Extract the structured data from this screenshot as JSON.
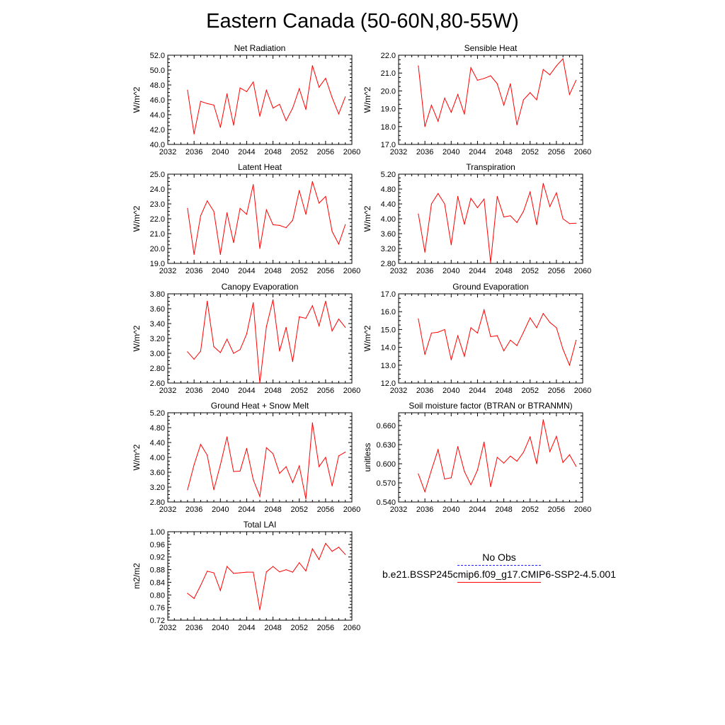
{
  "figure": {
    "title": "Eastern Canada (50-60N,80-55W)"
  },
  "legend": {
    "entries": [
      {
        "label": "No Obs",
        "color": "#1f1fff",
        "style": "dashed"
      },
      {
        "label": "b.e21.BSSP245cmip6.f09_g17.CMIP6-SSP2-4.5.001",
        "color": "#ff0000",
        "style": "solid"
      }
    ]
  },
  "chart_data": [
    {
      "type": "line",
      "title": "Net Radiation",
      "xlabel": "",
      "ylabel": "W/m^2",
      "xlim": [
        2032,
        2060
      ],
      "ylim": [
        40.0,
        52.0
      ],
      "xticks": [
        2032,
        2036,
        2040,
        2044,
        2048,
        2052,
        2056,
        2060
      ],
      "yticks": [
        "40.0",
        "42.0",
        "44.0",
        "46.0",
        "48.0",
        "50.0",
        "52.0"
      ],
      "grid": false,
      "x": [
        2035,
        2036,
        2037,
        2038,
        2039,
        2040,
        2041,
        2042,
        2043,
        2044,
        2045,
        2046,
        2047,
        2048,
        2049,
        2050,
        2051,
        2052,
        2053,
        2054,
        2055,
        2056,
        2057,
        2058,
        2059
      ],
      "series": [
        {
          "name": "b.e21.BSSP245cmip6.f09_g17.CMIP6-SSP2-4.5.001",
          "color": "#ff0000",
          "values": [
            47.3,
            41.4,
            45.8,
            45.5,
            45.3,
            42.3,
            46.8,
            42.6,
            47.6,
            47.1,
            48.4,
            43.8,
            47.3,
            44.9,
            45.4,
            43.2,
            44.9,
            47.5,
            44.7,
            50.6,
            47.7,
            48.9,
            46.3,
            44.1,
            46.4
          ]
        }
      ]
    },
    {
      "type": "line",
      "title": "Sensible Heat",
      "xlabel": "",
      "ylabel": "W/m^2",
      "xlim": [
        2032,
        2060
      ],
      "ylim": [
        17.0,
        22.0
      ],
      "xticks": [
        2032,
        2036,
        2040,
        2044,
        2048,
        2052,
        2056,
        2060
      ],
      "yticks": [
        "17.0",
        "18.0",
        "19.0",
        "20.0",
        "21.0",
        "22.0"
      ],
      "grid": false,
      "x": [
        2035,
        2036,
        2037,
        2038,
        2039,
        2040,
        2041,
        2042,
        2043,
        2044,
        2045,
        2046,
        2047,
        2048,
        2049,
        2050,
        2051,
        2052,
        2053,
        2054,
        2055,
        2056,
        2057,
        2058,
        2059
      ],
      "series": [
        {
          "name": "b.e21.BSSP245cmip6.f09_g17.CMIP6-SSP2-4.5.001",
          "color": "#ff0000",
          "values": [
            21.4,
            18.0,
            19.2,
            18.3,
            19.6,
            18.8,
            19.8,
            18.7,
            21.3,
            20.6,
            20.7,
            20.85,
            20.4,
            19.2,
            20.4,
            18.1,
            19.5,
            19.9,
            19.5,
            21.2,
            20.9,
            21.4,
            21.8,
            19.8,
            20.6
          ]
        }
      ]
    },
    {
      "type": "line",
      "title": "Latent Heat",
      "xlabel": "",
      "ylabel": "W/m^2",
      "xlim": [
        2032,
        2060
      ],
      "ylim": [
        19.0,
        25.0
      ],
      "xticks": [
        2032,
        2036,
        2040,
        2044,
        2048,
        2052,
        2056,
        2060
      ],
      "yticks": [
        "19.0",
        "20.0",
        "21.0",
        "22.0",
        "23.0",
        "24.0",
        "25.0"
      ],
      "grid": false,
      "x": [
        2035,
        2036,
        2037,
        2038,
        2039,
        2040,
        2041,
        2042,
        2043,
        2044,
        2045,
        2046,
        2047,
        2048,
        2049,
        2050,
        2051,
        2052,
        2053,
        2054,
        2055,
        2056,
        2057,
        2058,
        2059
      ],
      "series": [
        {
          "name": "b.e21.BSSP245cmip6.f09_g17.CMIP6-SSP2-4.5.001",
          "color": "#ff0000",
          "values": [
            22.7,
            19.6,
            22.2,
            23.2,
            22.5,
            19.6,
            22.4,
            20.4,
            22.7,
            22.3,
            24.3,
            20.0,
            22.6,
            21.6,
            21.55,
            21.4,
            21.9,
            23.9,
            22.3,
            24.5,
            23.05,
            23.5,
            21.15,
            20.3,
            21.6
          ]
        }
      ]
    },
    {
      "type": "line",
      "title": "Transpiration",
      "xlabel": "",
      "ylabel": "W/m^2",
      "xlim": [
        2032,
        2060
      ],
      "ylim": [
        2.8,
        5.2
      ],
      "xticks": [
        2032,
        2036,
        2040,
        2044,
        2048,
        2052,
        2056,
        2060
      ],
      "yticks": [
        "2.80",
        "3.20",
        "3.60",
        "4.00",
        "4.40",
        "4.80",
        "5.20"
      ],
      "grid": false,
      "x": [
        2035,
        2036,
        2037,
        2038,
        2039,
        2040,
        2041,
        2042,
        2043,
        2044,
        2045,
        2046,
        2047,
        2048,
        2049,
        2050,
        2051,
        2052,
        2053,
        2054,
        2055,
        2056,
        2057,
        2058,
        2059
      ],
      "series": [
        {
          "name": "b.e21.BSSP245cmip6.f09_g17.CMIP6-SSP2-4.5.001",
          "color": "#ff0000",
          "values": [
            4.13,
            3.1,
            4.4,
            4.68,
            4.4,
            3.3,
            4.6,
            3.85,
            4.55,
            4.3,
            4.53,
            2.82,
            4.6,
            4.05,
            4.08,
            3.9,
            4.2,
            4.72,
            3.84,
            4.95,
            4.33,
            4.7,
            4.0,
            3.87,
            3.88
          ]
        }
      ]
    },
    {
      "type": "line",
      "title": "Canopy Evaporation",
      "xlabel": "",
      "ylabel": "W/m^2",
      "xlim": [
        2032,
        2060
      ],
      "ylim": [
        2.6,
        3.8
      ],
      "xticks": [
        2032,
        2036,
        2040,
        2044,
        2048,
        2052,
        2056,
        2060
      ],
      "yticks": [
        "2.60",
        "2.80",
        "3.00",
        "3.20",
        "3.40",
        "3.60",
        "3.80"
      ],
      "grid": false,
      "x": [
        2035,
        2036,
        2037,
        2038,
        2039,
        2040,
        2041,
        2042,
        2043,
        2044,
        2045,
        2046,
        2047,
        2048,
        2049,
        2050,
        2051,
        2052,
        2053,
        2054,
        2055,
        2056,
        2057,
        2058,
        2059
      ],
      "series": [
        {
          "name": "b.e21.BSSP245cmip6.f09_g17.CMIP6-SSP2-4.5.001",
          "color": "#ff0000",
          "values": [
            3.02,
            2.92,
            3.03,
            3.7,
            3.09,
            3.01,
            3.19,
            3.0,
            3.05,
            3.26,
            3.68,
            2.6,
            3.36,
            3.72,
            3.03,
            3.35,
            2.89,
            3.49,
            3.47,
            3.64,
            3.37,
            3.7,
            3.3,
            3.46,
            3.35
          ]
        }
      ]
    },
    {
      "type": "line",
      "title": "Ground Evaporation",
      "xlabel": "",
      "ylabel": "W/m^2",
      "xlim": [
        2032,
        2060
      ],
      "ylim": [
        12.0,
        17.0
      ],
      "xticks": [
        2032,
        2036,
        2040,
        2044,
        2048,
        2052,
        2056,
        2060
      ],
      "yticks": [
        "12.0",
        "13.0",
        "14.0",
        "15.0",
        "16.0",
        "17.0"
      ],
      "grid": false,
      "x": [
        2035,
        2036,
        2037,
        2038,
        2039,
        2040,
        2041,
        2042,
        2043,
        2044,
        2045,
        2046,
        2047,
        2048,
        2049,
        2050,
        2051,
        2052,
        2053,
        2054,
        2055,
        2056,
        2057,
        2058,
        2059
      ],
      "series": [
        {
          "name": "b.e21.BSSP245cmip6.f09_g17.CMIP6-SSP2-4.5.001",
          "color": "#ff0000",
          "values": [
            15.6,
            13.6,
            14.8,
            14.85,
            15.0,
            13.3,
            14.65,
            13.5,
            15.1,
            14.8,
            16.1,
            14.6,
            14.65,
            13.8,
            14.4,
            14.1,
            14.85,
            15.65,
            15.1,
            15.9,
            15.4,
            15.1,
            13.9,
            13.0,
            14.4
          ]
        }
      ]
    },
    {
      "type": "line",
      "title": "Ground Heat + Snow Melt",
      "xlabel": "",
      "ylabel": "W/m^2",
      "xlim": [
        2032,
        2060
      ],
      "ylim": [
        2.8,
        5.2
      ],
      "xticks": [
        2032,
        2036,
        2040,
        2044,
        2048,
        2052,
        2056,
        2060
      ],
      "yticks": [
        "2.80",
        "3.20",
        "3.60",
        "4.00",
        "4.40",
        "4.80",
        "5.20"
      ],
      "grid": false,
      "x": [
        2035,
        2036,
        2037,
        2038,
        2039,
        2040,
        2041,
        2042,
        2043,
        2044,
        2045,
        2046,
        2047,
        2048,
        2049,
        2050,
        2051,
        2052,
        2053,
        2054,
        2055,
        2056,
        2057,
        2058,
        2059
      ],
      "series": [
        {
          "name": "b.e21.BSSP245cmip6.f09_g17.CMIP6-SSP2-4.5.001",
          "color": "#ff0000",
          "values": [
            3.13,
            3.8,
            4.35,
            4.06,
            3.13,
            3.8,
            4.55,
            3.62,
            3.63,
            4.24,
            3.4,
            2.95,
            4.26,
            4.1,
            3.57,
            3.75,
            3.32,
            3.77,
            2.88,
            4.93,
            3.75,
            4.0,
            3.23,
            4.04,
            4.14
          ]
        }
      ]
    },
    {
      "type": "line",
      "title": "Soil moisture factor (BTRAN or BTRANMN)",
      "xlabel": "",
      "ylabel": "unitless",
      "xlim": [
        2032,
        2060
      ],
      "ylim": [
        0.54,
        0.68
      ],
      "xticks": [
        2032,
        2036,
        2040,
        2044,
        2048,
        2052,
        2056,
        2060
      ],
      "yticks": [
        "0.540",
        "0.570",
        "0.600",
        "0.630",
        "0.660"
      ],
      "grid": false,
      "x": [
        2035,
        2036,
        2037,
        2038,
        2039,
        2040,
        2041,
        2042,
        2043,
        2044,
        2045,
        2046,
        2047,
        2048,
        2049,
        2050,
        2051,
        2052,
        2053,
        2054,
        2055,
        2056,
        2057,
        2058,
        2059
      ],
      "series": [
        {
          "name": "b.e21.BSSP245cmip6.f09_g17.CMIP6-SSP2-4.5.001",
          "color": "#ff0000",
          "values": [
            0.584,
            0.556,
            0.59,
            0.622,
            0.576,
            0.578,
            0.627,
            0.588,
            0.567,
            0.59,
            0.634,
            0.564,
            0.61,
            0.601,
            0.612,
            0.604,
            0.618,
            0.642,
            0.6,
            0.669,
            0.619,
            0.643,
            0.602,
            0.614,
            0.596
          ]
        }
      ]
    },
    {
      "type": "line",
      "title": "Total LAI",
      "xlabel": "",
      "ylabel": "m2/m2",
      "xlim": [
        2032,
        2060
      ],
      "ylim": [
        0.72,
        1.0
      ],
      "xticks": [
        2032,
        2036,
        2040,
        2044,
        2048,
        2052,
        2056,
        2060
      ],
      "yticks": [
        "0.72",
        "0.76",
        "0.80",
        "0.84",
        "0.88",
        "0.92",
        "0.96",
        "1.00"
      ],
      "grid": false,
      "x": [
        2035,
        2036,
        2037,
        2038,
        2039,
        2040,
        2041,
        2042,
        2043,
        2044,
        2045,
        2046,
        2047,
        2048,
        2049,
        2050,
        2051,
        2052,
        2053,
        2054,
        2055,
        2056,
        2057,
        2058,
        2059
      ],
      "series": [
        {
          "name": "b.e21.BSSP245cmip6.f09_g17.CMIP6-SSP2-4.5.001",
          "color": "#ff0000",
          "values": [
            0.805,
            0.789,
            0.83,
            0.875,
            0.87,
            0.814,
            0.89,
            0.868,
            0.87,
            0.872,
            0.872,
            0.753,
            0.873,
            0.89,
            0.873,
            0.88,
            0.872,
            0.902,
            0.876,
            0.946,
            0.912,
            0.963,
            0.938,
            0.951,
            0.928
          ]
        }
      ]
    }
  ]
}
